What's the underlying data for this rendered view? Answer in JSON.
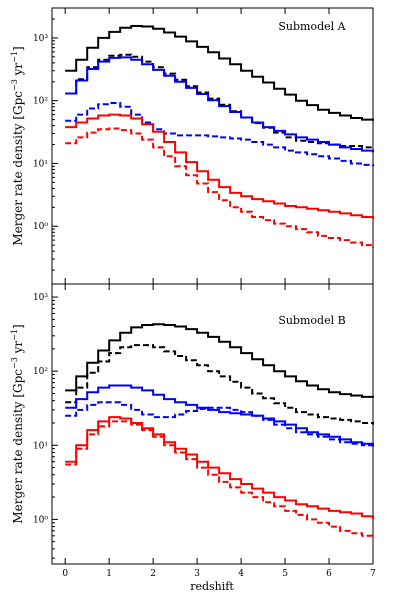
{
  "chart_data": [
    {
      "type": "line",
      "step": true,
      "annotation": "Submodel A",
      "ylabel": "Merger rate density [Gpc$^{-3}$ yr$^{-1}$]",
      "xlabel": "",
      "xlim": [
        -0.3,
        7
      ],
      "ylim": [
        0.12,
        3000
      ],
      "yscale": "log",
      "grid": false,
      "x": [
        0.0,
        0.25,
        0.5,
        0.75,
        1.0,
        1.25,
        1.5,
        1.75,
        2.0,
        2.25,
        2.5,
        2.75,
        3.0,
        3.25,
        3.5,
        3.75,
        4.0,
        4.25,
        4.5,
        4.75,
        5.0,
        5.25,
        5.5,
        5.75,
        6.0,
        6.25,
        6.5,
        6.75,
        7.0
      ],
      "series": [
        {
          "color": "#000000",
          "dash": "solid",
          "values": [
            300,
            450,
            700,
            1000,
            1250,
            1450,
            1550,
            1520,
            1400,
            1220,
            1050,
            880,
            720,
            590,
            470,
            380,
            300,
            240,
            195,
            155,
            125,
            100,
            85,
            72,
            64,
            58,
            53,
            50,
            48
          ]
        },
        {
          "color": "#000000",
          "dash": "dashed",
          "values": [
            130,
            220,
            340,
            450,
            520,
            540,
            500,
            420,
            340,
            270,
            215,
            170,
            135,
            108,
            86,
            68,
            54,
            44,
            37,
            31,
            26,
            23,
            22,
            21,
            20,
            19,
            19,
            18,
            18
          ]
        },
        {
          "color": "#0000ff",
          "dash": "solid",
          "values": [
            130,
            210,
            320,
            420,
            480,
            490,
            450,
            380,
            310,
            250,
            200,
            160,
            128,
            102,
            82,
            66,
            54,
            45,
            38,
            33,
            29,
            26,
            24,
            22,
            20,
            18,
            17,
            16,
            15
          ]
        },
        {
          "color": "#0000ff",
          "dash": "dashed",
          "values": [
            48,
            60,
            75,
            88,
            92,
            80,
            60,
            45,
            35,
            30,
            28,
            28,
            28,
            27,
            26,
            25,
            24,
            22,
            20,
            18,
            16,
            15,
            14,
            13,
            12,
            11,
            10,
            9.5,
            9
          ]
        },
        {
          "color": "#ff0000",
          "dash": "solid",
          "values": [
            38,
            45,
            52,
            58,
            60,
            58,
            52,
            42,
            32,
            22,
            15,
            10.5,
            7.5,
            5.5,
            4.2,
            3.4,
            3.0,
            2.7,
            2.5,
            2.3,
            2.1,
            2.0,
            1.9,
            1.8,
            1.7,
            1.6,
            1.5,
            1.4,
            1.3
          ]
        },
        {
          "color": "#ff0000",
          "dash": "dashed",
          "values": [
            21,
            26,
            31,
            35,
            36,
            34,
            30,
            24,
            18,
            13,
            9,
            6.5,
            4.8,
            3.5,
            2.6,
            2.0,
            1.7,
            1.4,
            1.25,
            1.1,
            1.0,
            0.9,
            0.8,
            0.7,
            0.65,
            0.6,
            0.55,
            0.5,
            0.45
          ]
        }
      ],
      "yticks": [
        {
          "v": 1,
          "label": "10⁰"
        },
        {
          "v": 10,
          "label": "10¹"
        },
        {
          "v": 100,
          "label": "10²"
        },
        {
          "v": 1000,
          "label": "10³"
        }
      ],
      "xticks": [
        {
          "v": 0,
          "label": ""
        },
        {
          "v": 1,
          "label": ""
        },
        {
          "v": 2,
          "label": ""
        },
        {
          "v": 3,
          "label": ""
        },
        {
          "v": 4,
          "label": ""
        },
        {
          "v": 5,
          "label": ""
        },
        {
          "v": 6,
          "label": ""
        },
        {
          "v": 7,
          "label": ""
        }
      ]
    },
    {
      "type": "line",
      "step": true,
      "annotation": "Submodel B",
      "ylabel": "Merger rate density [Gpc$^{-3}$ yr$^{-1}$]",
      "xlabel": "redshift",
      "xlim": [
        -0.3,
        7
      ],
      "ylim": [
        0.25,
        1500
      ],
      "yscale": "log",
      "grid": false,
      "x": [
        0.0,
        0.25,
        0.5,
        0.75,
        1.0,
        1.25,
        1.5,
        1.75,
        2.0,
        2.25,
        2.5,
        2.75,
        3.0,
        3.25,
        3.5,
        3.75,
        4.0,
        4.25,
        4.5,
        4.75,
        5.0,
        5.25,
        5.5,
        5.75,
        6.0,
        6.25,
        6.5,
        6.75,
        7.0
      ],
      "series": [
        {
          "color": "#000000",
          "dash": "solid",
          "values": [
            55,
            85,
            130,
            190,
            260,
            330,
            390,
            420,
            430,
            420,
            400,
            370,
            330,
            290,
            250,
            210,
            175,
            145,
            120,
            100,
            85,
            73,
            64,
            57,
            52,
            49,
            47,
            45,
            44
          ]
        },
        {
          "color": "#000000",
          "dash": "dashed",
          "values": [
            38,
            60,
            95,
            135,
            175,
            210,
            225,
            225,
            210,
            185,
            160,
            140,
            120,
            100,
            85,
            72,
            60,
            50,
            43,
            37,
            32,
            28,
            26,
            24,
            23,
            22,
            21,
            20,
            19
          ]
        },
        {
          "color": "#0000ff",
          "dash": "solid",
          "values": [
            32,
            42,
            52,
            60,
            64,
            64,
            60,
            55,
            48,
            42,
            38,
            35,
            32,
            30,
            28,
            27,
            26,
            25,
            23,
            21,
            19,
            17,
            15,
            14,
            13,
            12,
            11,
            10.5,
            10
          ]
        },
        {
          "color": "#0000ff",
          "dash": "dashed",
          "values": [
            25,
            30,
            35,
            38,
            38,
            35,
            30,
            26,
            24,
            24,
            26,
            29,
            31,
            32,
            32,
            30,
            28,
            25,
            22,
            19,
            17,
            15,
            14,
            13,
            12,
            11,
            10.5,
            10,
            9.5
          ]
        },
        {
          "color": "#ff0000",
          "dash": "solid",
          "values": [
            6,
            10,
            16,
            21,
            24,
            23,
            20,
            17,
            14,
            11,
            9,
            7.5,
            6,
            5,
            4.2,
            3.5,
            3.0,
            2.6,
            2.3,
            2.0,
            1.8,
            1.6,
            1.5,
            1.4,
            1.3,
            1.25,
            1.2,
            1.1,
            1.0
          ]
        },
        {
          "color": "#ff0000",
          "dash": "dashed",
          "values": [
            5.5,
            9,
            14,
            18,
            21,
            21,
            19,
            16,
            13,
            10,
            8,
            6.5,
            5,
            4,
            3.2,
            2.7,
            2.3,
            2.0,
            1.7,
            1.5,
            1.3,
            1.15,
            1.0,
            0.9,
            0.8,
            0.7,
            0.65,
            0.6,
            0.55
          ]
        }
      ],
      "yticks": [
        {
          "v": 1,
          "label": "10⁰"
        },
        {
          "v": 10,
          "label": "10¹"
        },
        {
          "v": 100,
          "label": "10²"
        },
        {
          "v": 1000,
          "label": "10³"
        }
      ],
      "xticks": [
        {
          "v": 0,
          "label": "0"
        },
        {
          "v": 1,
          "label": "1"
        },
        {
          "v": 2,
          "label": "2"
        },
        {
          "v": 3,
          "label": "3"
        },
        {
          "v": 4,
          "label": "4"
        },
        {
          "v": 5,
          "label": "5"
        },
        {
          "v": 6,
          "label": "6"
        },
        {
          "v": 7,
          "label": "7"
        }
      ]
    }
  ]
}
